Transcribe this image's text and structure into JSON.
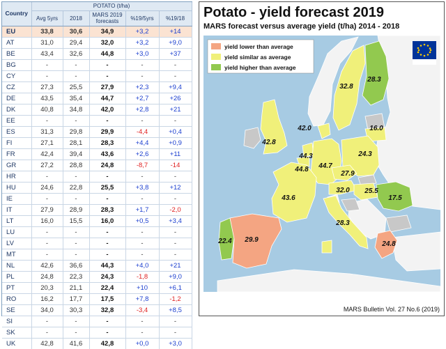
{
  "table": {
    "super_header": "POTATO (t/ha)",
    "headers": {
      "country": "Country",
      "avg5": "Avg 5yrs",
      "y2018": "2018",
      "mars_line1": "MARS 2019",
      "mars_line2": "forecasts",
      "pct19_5": "%19/5yrs",
      "pct19_18": "%19/18"
    },
    "rows": [
      {
        "c": "EU",
        "a": "33,8",
        "b": "30,6",
        "f": "34,9",
        "p1": "+3,2",
        "p2": "+14"
      },
      {
        "c": "AT",
        "a": "31,0",
        "b": "29,4",
        "f": "32,0",
        "p1": "+3,2",
        "p2": "+9,0"
      },
      {
        "c": "BE",
        "a": "43,4",
        "b": "32,6",
        "f": "44,8",
        "p1": "+3,0",
        "p2": "+37"
      },
      {
        "c": "BG",
        "a": "-",
        "b": "-",
        "f": "-",
        "p1": "-",
        "p2": "-"
      },
      {
        "c": "CY",
        "a": "-",
        "b": "-",
        "f": "-",
        "p1": "-",
        "p2": "-"
      },
      {
        "c": "CZ",
        "a": "27,3",
        "b": "25,5",
        "f": "27,9",
        "p1": "+2,3",
        "p2": "+9,4"
      },
      {
        "c": "DE",
        "a": "43,5",
        "b": "35,4",
        "f": "44,7",
        "p1": "+2,7",
        "p2": "+26"
      },
      {
        "c": "DK",
        "a": "40,8",
        "b": "34,8",
        "f": "42,0",
        "p1": "+2,8",
        "p2": "+21"
      },
      {
        "c": "EE",
        "a": "-",
        "b": "-",
        "f": "-",
        "p1": "-",
        "p2": "-"
      },
      {
        "c": "ES",
        "a": "31,3",
        "b": "29,8",
        "f": "29,9",
        "p1": "-4,4",
        "p2": "+0,4"
      },
      {
        "c": "FI",
        "a": "27,1",
        "b": "28,1",
        "f": "28,3",
        "p1": "+4,4",
        "p2": "+0,9"
      },
      {
        "c": "FR",
        "a": "42,4",
        "b": "39,4",
        "f": "43,6",
        "p1": "+2,6",
        "p2": "+11"
      },
      {
        "c": "GR",
        "a": "27,2",
        "b": "28,8",
        "f": "24,8",
        "p1": "-8,7",
        "p2": "-14"
      },
      {
        "c": "HR",
        "a": "-",
        "b": "-",
        "f": "-",
        "p1": "-",
        "p2": "-"
      },
      {
        "c": "HU",
        "a": "24,6",
        "b": "22,8",
        "f": "25,5",
        "p1": "+3,8",
        "p2": "+12"
      },
      {
        "c": "IE",
        "a": "-",
        "b": "-",
        "f": "-",
        "p1": "-",
        "p2": "-"
      },
      {
        "c": "IT",
        "a": "27,9",
        "b": "28,9",
        "f": "28,3",
        "p1": "+1,7",
        "p2": "-2,0"
      },
      {
        "c": "LT",
        "a": "16,0",
        "b": "15,5",
        "f": "16,0",
        "p1": "+0,5",
        "p2": "+3,4"
      },
      {
        "c": "LU",
        "a": "-",
        "b": "-",
        "f": "-",
        "p1": "-",
        "p2": "-"
      },
      {
        "c": "LV",
        "a": "-",
        "b": "-",
        "f": "-",
        "p1": "-",
        "p2": "-"
      },
      {
        "c": "MT",
        "a": "-",
        "b": "-",
        "f": "-",
        "p1": "-",
        "p2": "-"
      },
      {
        "c": "NL",
        "a": "42,6",
        "b": "36,6",
        "f": "44,3",
        "p1": "+4,0",
        "p2": "+21"
      },
      {
        "c": "PL",
        "a": "24,8",
        "b": "22,3",
        "f": "24,3",
        "p1": "-1,8",
        "p2": "+9,0"
      },
      {
        "c": "PT",
        "a": "20,3",
        "b": "21,1",
        "f": "22,4",
        "p1": "+10",
        "p2": "+6,1"
      },
      {
        "c": "RO",
        "a": "16,2",
        "b": "17,7",
        "f": "17,5",
        "p1": "+7,8",
        "p2": "-1,2"
      },
      {
        "c": "SE",
        "a": "34,0",
        "b": "30,3",
        "f": "32,8",
        "p1": "-3,4",
        "p2": "+8,5"
      },
      {
        "c": "SI",
        "a": "-",
        "b": "-",
        "f": "-",
        "p1": "-",
        "p2": "-"
      },
      {
        "c": "SK",
        "a": "-",
        "b": "-",
        "f": "-",
        "p1": "-",
        "p2": "-"
      },
      {
        "c": "UK",
        "a": "42,8",
        "b": "41,6",
        "f": "42,8",
        "p1": "+0,0",
        "p2": "+3,0"
      }
    ]
  },
  "map": {
    "title": "Potato - yield forecast 2019",
    "subtitle": "MARS forecast versus average yield (t/ha) 2014 - 2018",
    "footer": "MARS Bulletin Vol. 27 No.6 (2019)",
    "colors": {
      "lower": "#f4a582",
      "similar": "#f0f07a",
      "higher": "#92c94f",
      "no_data": "#c8c8c8",
      "sea": "#a7cbe3",
      "other_land": "#f3f3f3"
    },
    "legend": [
      {
        "key": "lower",
        "label": "yield lower than average"
      },
      {
        "key": "similar",
        "label": "yield similar as average"
      },
      {
        "key": "higher",
        "label": "yield higher than average"
      }
    ],
    "values": {
      "SE": "32.8",
      "FI": "28.3",
      "UK": "42.8",
      "DK": "42.0",
      "LT": "16.0",
      "NL": "44.3",
      "BE": "44.8",
      "DE": "44.7",
      "PL": "24.3",
      "CZ": "27.9",
      "FR": "43.6",
      "AT": "32.0",
      "HU": "25.5",
      "RO": "17.5",
      "IT": "28.3",
      "PT": "22.4",
      "ES": "29.9",
      "GR": "24.8"
    }
  }
}
